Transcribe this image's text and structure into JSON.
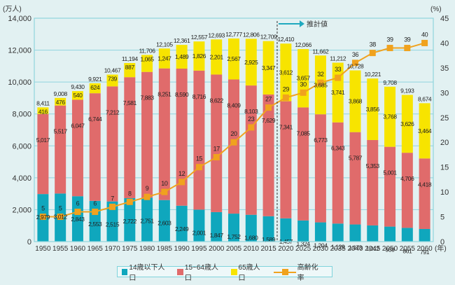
{
  "chart_data": {
    "type": "bar",
    "stacked": true,
    "title": "",
    "xlabel": "(年)",
    "ylabel": "(万人)",
    "ylabel_right": "(%)",
    "ylim": [
      0,
      14000
    ],
    "ylim_right": [
      0,
      45
    ],
    "yticks": [
      "0",
      "2,000",
      "4,000",
      "6,000",
      "8,000",
      "10,000",
      "12,000",
      "14,000"
    ],
    "yticks_right": [
      "0",
      "5",
      "10",
      "15",
      "20",
      "25",
      "30",
      "35",
      "40",
      "45"
    ],
    "grid": true,
    "categories": [
      "1950",
      "1955",
      "1960",
      "1965",
      "1970",
      "1975",
      "1980",
      "1985",
      "1990",
      "1995",
      "2000",
      "2005",
      "2010",
      "2015",
      "2020",
      "2025",
      "2030",
      "2035",
      "2040",
      "2045",
      "2050",
      "2055",
      "2060"
    ],
    "series": [
      {
        "name": "14歳以下人口",
        "color": "#0fa7bd",
        "values": [
          2979,
          3012,
          2843,
          2553,
          2515,
          2722,
          2751,
          2603,
          2249,
          2001,
          1847,
          1752,
          1680,
          1589,
          1457,
          1324,
          1204,
          1129,
          1073,
          1012,
          939,
          861,
          791
        ]
      },
      {
        "name": "15~64歳人口",
        "color": "#e06b6b",
        "values": [
          5017,
          5517,
          6047,
          6744,
          7212,
          7581,
          7883,
          8251,
          8590,
          8716,
          8622,
          8409,
          8103,
          7629,
          7341,
          7085,
          6773,
          6343,
          5787,
          5353,
          5001,
          4706,
          4418
        ]
      },
      {
        "name": "65歳人口",
        "color": "#f7e400",
        "values": [
          416,
          476,
          540,
          624,
          739,
          887,
          1065,
          1247,
          1489,
          1826,
          2201,
          2567,
          2925,
          3347,
          3612,
          3657,
          3685,
          3741,
          3868,
          3856,
          3768,
          3626,
          3464
        ]
      }
    ],
    "totals": [
      8411,
      9008,
      9430,
      9921,
      10467,
      11194,
      11706,
      12105,
      12361,
      12557,
      12693,
      12777,
      12806,
      12709,
      12410,
      12066,
      11662,
      11212,
      10728,
      10221,
      9708,
      9193,
      8674
    ],
    "line_series": {
      "name": "高齢化率",
      "axis": "right",
      "color": "#f0a21e",
      "values": [
        5,
        5,
        6,
        6,
        7,
        8,
        9,
        10,
        12,
        15,
        17,
        20,
        23,
        27,
        29,
        30,
        32,
        33,
        36,
        38,
        39,
        39,
        40
      ]
    },
    "annotation": {
      "text": "推計値",
      "from_category": "2020"
    },
    "legend": "bottom-center"
  }
}
